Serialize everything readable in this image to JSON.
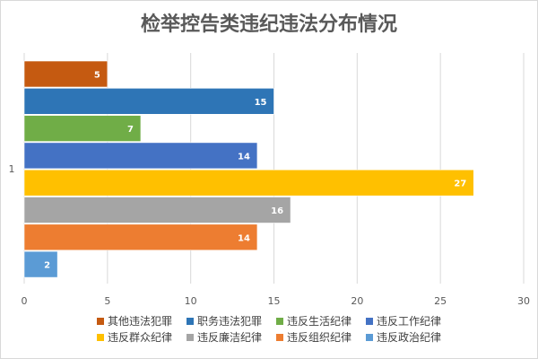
{
  "chart_data": {
    "type": "bar",
    "orientation": "horizontal",
    "title": "检举控告类违纪违法分布情况",
    "categories": [
      "1"
    ],
    "series": [
      {
        "name": "其他违法犯罪",
        "values": [
          5
        ],
        "color": "#c55a11"
      },
      {
        "name": "职务违法犯罪",
        "values": [
          15
        ],
        "color": "#2e75b6"
      },
      {
        "name": "违反生活纪律",
        "values": [
          7
        ],
        "color": "#70ad47"
      },
      {
        "name": "违反工作纪律",
        "values": [
          14
        ],
        "color": "#4472c4"
      },
      {
        "name": "违反群众纪律",
        "values": [
          27
        ],
        "color": "#ffc000"
      },
      {
        "name": "违反廉洁纪律",
        "values": [
          16
        ],
        "color": "#a5a5a5"
      },
      {
        "name": "违反组织纪律",
        "values": [
          14
        ],
        "color": "#ed7d31"
      },
      {
        "name": "违反政治纪律",
        "values": [
          2
        ],
        "color": "#5b9bd5"
      }
    ],
    "xlim": [
      0,
      30
    ],
    "xticks": [
      "0",
      "5",
      "10",
      "15",
      "20",
      "25",
      "30"
    ],
    "grid": true,
    "legend_position": "bottom",
    "data_labels": true
  }
}
